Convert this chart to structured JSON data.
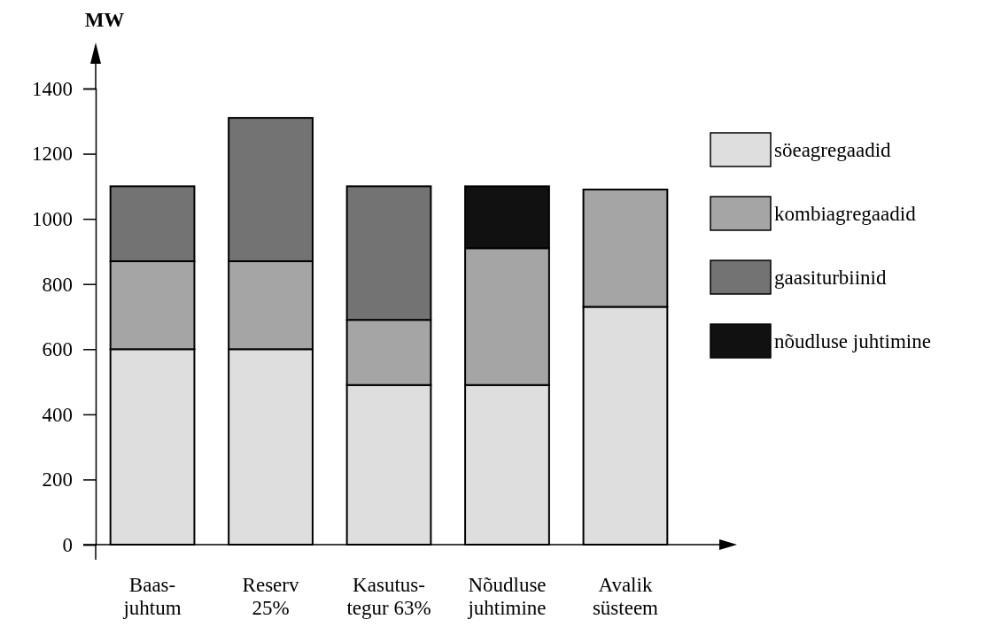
{
  "chart_data": {
    "type": "bar",
    "stacked": true,
    "ylabel": "MW",
    "categories": [
      "Baas-\njuhtum",
      "Reserv\n25%",
      "Kasutus-\ntegur 63%",
      "Nõudluse\njuhtimine",
      "Avalik\nsüsteem"
    ],
    "series": [
      {
        "name": "söeagregaadid",
        "color": "#dedede",
        "values": [
          600,
          600,
          490,
          490,
          730
        ]
      },
      {
        "name": "kombiagregaadid",
        "color": "#a5a5a5",
        "values": [
          270,
          270,
          200,
          420,
          360
        ]
      },
      {
        "name": "gaasiturbiinid",
        "color": "#737373",
        "values": [
          230,
          440,
          410,
          null,
          null
        ]
      },
      {
        "name": "nõudluse juhtimine",
        "color": "#111111",
        "values": [
          null,
          null,
          null,
          190,
          null
        ]
      }
    ],
    "ylim": [
      0,
      1400
    ],
    "yticks": [
      0,
      200,
      400,
      600,
      800,
      1000,
      1200,
      1400
    ],
    "grid": false,
    "legend": "right"
  }
}
